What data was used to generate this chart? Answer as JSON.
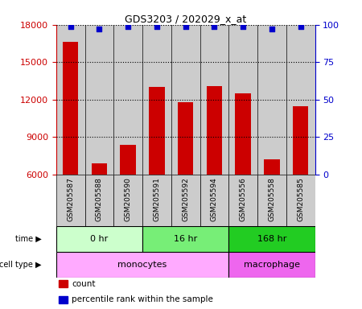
{
  "title": "GDS3203 / 202029_x_at",
  "samples": [
    "GSM205587",
    "GSM205588",
    "GSM205590",
    "GSM205591",
    "GSM205592",
    "GSM205594",
    "GSM205556",
    "GSM205558",
    "GSM205585"
  ],
  "counts": [
    16600,
    6900,
    8400,
    13000,
    11800,
    13100,
    12500,
    7200,
    11500
  ],
  "percentile_ranks": [
    99,
    97,
    99,
    99,
    99,
    99,
    99,
    97,
    99
  ],
  "ylim_left": [
    6000,
    18000
  ],
  "ylim_right": [
    0,
    100
  ],
  "yticks_left": [
    6000,
    9000,
    12000,
    15000,
    18000
  ],
  "yticks_right": [
    0,
    25,
    50,
    75,
    100
  ],
  "bar_color": "#cc0000",
  "dot_color": "#0000cc",
  "bar_width": 0.55,
  "time_groups": [
    {
      "label": "0 hr",
      "start": 0,
      "end": 3,
      "color": "#ccffcc"
    },
    {
      "label": "16 hr",
      "start": 3,
      "end": 6,
      "color": "#77ee77"
    },
    {
      "label": "168 hr",
      "start": 6,
      "end": 9,
      "color": "#22cc22"
    }
  ],
  "cell_type_groups": [
    {
      "label": "monocytes",
      "start": 0,
      "end": 6,
      "color": "#ffaaff"
    },
    {
      "label": "macrophage",
      "start": 6,
      "end": 9,
      "color": "#ee66ee"
    }
  ],
  "bar_axis_color": "#cc0000",
  "pct_axis_color": "#0000cc",
  "grid_style": "dotted",
  "grid_color": "#000000",
  "background_color": "#ffffff",
  "sample_area_color": "#cccccc",
  "legend_items": [
    {
      "label": "count",
      "color": "#cc0000"
    },
    {
      "label": "percentile rank within the sample",
      "color": "#0000cc"
    }
  ]
}
